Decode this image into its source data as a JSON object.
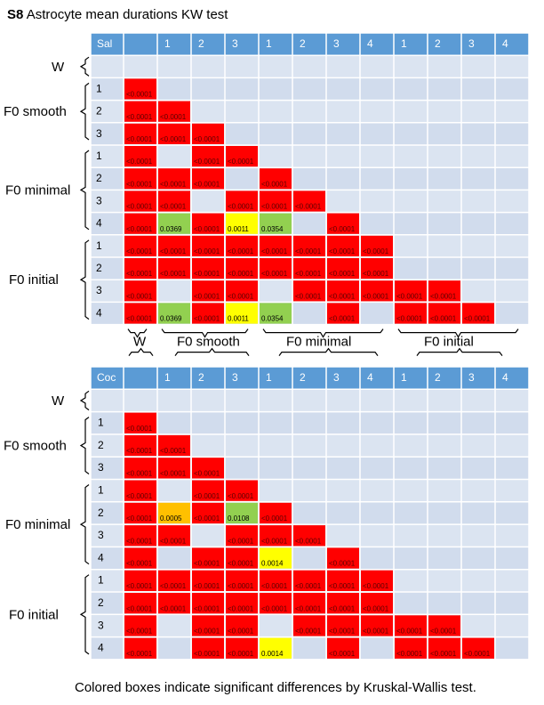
{
  "title_prefix": "S8",
  "title_rest": "Astrocyte mean durations KW test",
  "footnote": "Colored boxes indicate significant differences by Kruskal-Wallis test.",
  "colors": {
    "header": "#5b9bd5",
    "row_band_light": "#dbe4f1",
    "row_band_dark": "#d1dced",
    "sig_red": "#ff0000",
    "sig_green": "#92d050",
    "sig_yellow": "#ffff00",
    "sig_orange": "#ffc000",
    "grid_line": "#ffffff"
  },
  "chart_data": [
    {
      "type": "table",
      "corner_label": "Sal",
      "column_labels": [
        "1",
        "2",
        "3",
        "1",
        "2",
        "3",
        "4",
        "1",
        "2",
        "3",
        "4"
      ],
      "row_labels": [
        "",
        "1",
        "2",
        "3",
        "1",
        "2",
        "3",
        "4",
        "1",
        "2",
        "3",
        "4"
      ],
      "row_groups": [
        {
          "name": "W",
          "rows": [
            0
          ]
        },
        {
          "name": "F0 smooth",
          "rows": [
            1,
            2,
            3
          ]
        },
        {
          "name": "F0 minimal",
          "rows": [
            4,
            5,
            6,
            7
          ]
        },
        {
          "name": "F0 initial",
          "rows": [
            8,
            9,
            10,
            11
          ]
        }
      ],
      "bottom_group_labels": [
        "W",
        "F0 smooth",
        "F0 minimal",
        "F0 initial"
      ],
      "cells": [
        {
          "r": 1,
          "c": 0,
          "text": "<0.0001",
          "color": "red"
        },
        {
          "r": 2,
          "c": 0,
          "text": "<0.0001",
          "color": "red"
        },
        {
          "r": 2,
          "c": 1,
          "text": "<0.0001",
          "color": "red"
        },
        {
          "r": 3,
          "c": 0,
          "text": "<0.0001",
          "color": "red"
        },
        {
          "r": 3,
          "c": 1,
          "text": "<0.0001",
          "color": "red"
        },
        {
          "r": 3,
          "c": 2,
          "text": "<0.0001",
          "color": "red"
        },
        {
          "r": 4,
          "c": 0,
          "text": "<0.0001",
          "color": "red"
        },
        {
          "r": 4,
          "c": 2,
          "text": "<0.0001",
          "color": "red"
        },
        {
          "r": 4,
          "c": 3,
          "text": "<0.0001",
          "color": "red"
        },
        {
          "r": 5,
          "c": 0,
          "text": "<0.0001",
          "color": "red"
        },
        {
          "r": 5,
          "c": 1,
          "text": "<0.0001",
          "color": "red"
        },
        {
          "r": 5,
          "c": 2,
          "text": "<0.0001",
          "color": "red"
        },
        {
          "r": 5,
          "c": 4,
          "text": "<0.0001",
          "color": "red"
        },
        {
          "r": 6,
          "c": 0,
          "text": "<0.0001",
          "color": "red"
        },
        {
          "r": 6,
          "c": 1,
          "text": "<0.0001",
          "color": "red"
        },
        {
          "r": 6,
          "c": 3,
          "text": "<0.0001",
          "color": "red"
        },
        {
          "r": 6,
          "c": 4,
          "text": "<0.0001",
          "color": "red"
        },
        {
          "r": 6,
          "c": 5,
          "text": "<0.0001",
          "color": "red"
        },
        {
          "r": 7,
          "c": 0,
          "text": "<0.0001",
          "color": "red"
        },
        {
          "r": 7,
          "c": 1,
          "text": "0.0369",
          "color": "green"
        },
        {
          "r": 7,
          "c": 2,
          "text": "<0.0001",
          "color": "red"
        },
        {
          "r": 7,
          "c": 3,
          "text": "0.0011",
          "color": "yellow"
        },
        {
          "r": 7,
          "c": 4,
          "text": "0.0354",
          "color": "green"
        },
        {
          "r": 7,
          "c": 6,
          "text": "<0.0001",
          "color": "red"
        },
        {
          "r": 8,
          "c": 0,
          "text": "<0.0001",
          "color": "red"
        },
        {
          "r": 8,
          "c": 1,
          "text": "<0.0001",
          "color": "red"
        },
        {
          "r": 8,
          "c": 2,
          "text": "<0.0001",
          "color": "red"
        },
        {
          "r": 8,
          "c": 3,
          "text": "<0.0001",
          "color": "red"
        },
        {
          "r": 8,
          "c": 4,
          "text": "<0.0001",
          "color": "red"
        },
        {
          "r": 8,
          "c": 5,
          "text": "<0.0001",
          "color": "red"
        },
        {
          "r": 8,
          "c": 6,
          "text": "<0.0001",
          "color": "red"
        },
        {
          "r": 8,
          "c": 7,
          "text": "<0.0001",
          "color": "red"
        },
        {
          "r": 9,
          "c": 0,
          "text": "<0.0001",
          "color": "red"
        },
        {
          "r": 9,
          "c": 1,
          "text": "<0.0001",
          "color": "red"
        },
        {
          "r": 9,
          "c": 2,
          "text": "<0.0001",
          "color": "red"
        },
        {
          "r": 9,
          "c": 3,
          "text": "<0.0001",
          "color": "red"
        },
        {
          "r": 9,
          "c": 4,
          "text": "<0.0001",
          "color": "red"
        },
        {
          "r": 9,
          "c": 5,
          "text": "<0.0001",
          "color": "red"
        },
        {
          "r": 9,
          "c": 6,
          "text": "<0.0001",
          "color": "red"
        },
        {
          "r": 9,
          "c": 7,
          "text": "<0.0001",
          "color": "red"
        },
        {
          "r": 10,
          "c": 0,
          "text": "<0.0001",
          "color": "red"
        },
        {
          "r": 10,
          "c": 2,
          "text": "<0.0001",
          "color": "red"
        },
        {
          "r": 10,
          "c": 3,
          "text": "<0.0001",
          "color": "red"
        },
        {
          "r": 10,
          "c": 5,
          "text": "<0.0001",
          "color": "red"
        },
        {
          "r": 10,
          "c": 6,
          "text": "<0.0001",
          "color": "red"
        },
        {
          "r": 10,
          "c": 7,
          "text": "<0.0001",
          "color": "red"
        },
        {
          "r": 10,
          "c": 8,
          "text": "<0.0001",
          "color": "red"
        },
        {
          "r": 10,
          "c": 9,
          "text": "<0.0001",
          "color": "red"
        },
        {
          "r": 11,
          "c": 0,
          "text": "<0.0001",
          "color": "red"
        },
        {
          "r": 11,
          "c": 1,
          "text": "0.0369",
          "color": "green"
        },
        {
          "r": 11,
          "c": 2,
          "text": "<0.0001",
          "color": "red"
        },
        {
          "r": 11,
          "c": 3,
          "text": "0.0011",
          "color": "yellow"
        },
        {
          "r": 11,
          "c": 4,
          "text": "0.0354",
          "color": "green"
        },
        {
          "r": 11,
          "c": 6,
          "text": "<0.0001",
          "color": "red"
        },
        {
          "r": 11,
          "c": 8,
          "text": "<0.0001",
          "color": "red"
        },
        {
          "r": 11,
          "c": 9,
          "text": "<0.0001",
          "color": "red"
        },
        {
          "r": 11,
          "c": 10,
          "text": "<0.0001",
          "color": "red"
        }
      ]
    },
    {
      "type": "table",
      "corner_label": "Coc",
      "column_labels": [
        "1",
        "2",
        "3",
        "1",
        "2",
        "3",
        "4",
        "1",
        "2",
        "3",
        "4"
      ],
      "row_labels": [
        "",
        "1",
        "2",
        "3",
        "1",
        "2",
        "3",
        "4",
        "1",
        "2",
        "3",
        "4"
      ],
      "row_groups": [
        {
          "name": "W",
          "rows": [
            0
          ]
        },
        {
          "name": "F0 smooth",
          "rows": [
            1,
            2,
            3
          ]
        },
        {
          "name": "F0 minimal",
          "rows": [
            4,
            5,
            6,
            7
          ]
        },
        {
          "name": "F0 initial",
          "rows": [
            8,
            9,
            10,
            11
          ]
        }
      ],
      "cells": [
        {
          "r": 1,
          "c": 0,
          "text": "<0.0001",
          "color": "red"
        },
        {
          "r": 2,
          "c": 0,
          "text": "<0.0001",
          "color": "red"
        },
        {
          "r": 2,
          "c": 1,
          "text": "<0.0001",
          "color": "red"
        },
        {
          "r": 3,
          "c": 0,
          "text": "<0.0001",
          "color": "red"
        },
        {
          "r": 3,
          "c": 1,
          "text": "<0.0001",
          "color": "red"
        },
        {
          "r": 3,
          "c": 2,
          "text": "<0.0001",
          "color": "red"
        },
        {
          "r": 4,
          "c": 0,
          "text": "<0.0001",
          "color": "red"
        },
        {
          "r": 4,
          "c": 2,
          "text": "<0.0001",
          "color": "red"
        },
        {
          "r": 4,
          "c": 3,
          "text": "<0.0001",
          "color": "red"
        },
        {
          "r": 5,
          "c": 0,
          "text": "<0.0001",
          "color": "red"
        },
        {
          "r": 5,
          "c": 1,
          "text": "0.0005",
          "color": "orange"
        },
        {
          "r": 5,
          "c": 2,
          "text": "<0.0001",
          "color": "red"
        },
        {
          "r": 5,
          "c": 3,
          "text": "0.0108",
          "color": "green"
        },
        {
          "r": 5,
          "c": 4,
          "text": "<0.0001",
          "color": "red"
        },
        {
          "r": 6,
          "c": 0,
          "text": "<0.0001",
          "color": "red"
        },
        {
          "r": 6,
          "c": 1,
          "text": "<0.0001",
          "color": "red"
        },
        {
          "r": 6,
          "c": 3,
          "text": "<0.0001",
          "color": "red"
        },
        {
          "r": 6,
          "c": 4,
          "text": "<0.0001",
          "color": "red"
        },
        {
          "r": 6,
          "c": 5,
          "text": "<0.0001",
          "color": "red"
        },
        {
          "r": 7,
          "c": 0,
          "text": "<0.0001",
          "color": "red"
        },
        {
          "r": 7,
          "c": 2,
          "text": "<0.0001",
          "color": "red"
        },
        {
          "r": 7,
          "c": 3,
          "text": "<0.0001",
          "color": "red"
        },
        {
          "r": 7,
          "c": 4,
          "text": "0.0014",
          "color": "yellow"
        },
        {
          "r": 7,
          "c": 6,
          "text": "<0.0001",
          "color": "red"
        },
        {
          "r": 8,
          "c": 0,
          "text": "<0.0001",
          "color": "red"
        },
        {
          "r": 8,
          "c": 1,
          "text": "<0.0001",
          "color": "red"
        },
        {
          "r": 8,
          "c": 2,
          "text": "<0.0001",
          "color": "red"
        },
        {
          "r": 8,
          "c": 3,
          "text": "<0.0001",
          "color": "red"
        },
        {
          "r": 8,
          "c": 4,
          "text": "<0.0001",
          "color": "red"
        },
        {
          "r": 8,
          "c": 5,
          "text": "<0.0001",
          "color": "red"
        },
        {
          "r": 8,
          "c": 6,
          "text": "<0.0001",
          "color": "red"
        },
        {
          "r": 8,
          "c": 7,
          "text": "<0.0001",
          "color": "red"
        },
        {
          "r": 9,
          "c": 0,
          "text": "<0.0001",
          "color": "red"
        },
        {
          "r": 9,
          "c": 1,
          "text": "<0.0001",
          "color": "red"
        },
        {
          "r": 9,
          "c": 2,
          "text": "<0.0001",
          "color": "red"
        },
        {
          "r": 9,
          "c": 3,
          "text": "<0.0001",
          "color": "red"
        },
        {
          "r": 9,
          "c": 4,
          "text": "<0.0001",
          "color": "red"
        },
        {
          "r": 9,
          "c": 5,
          "text": "<0.0001",
          "color": "red"
        },
        {
          "r": 9,
          "c": 6,
          "text": "<0.0001",
          "color": "red"
        },
        {
          "r": 9,
          "c": 7,
          "text": "<0.0001",
          "color": "red"
        },
        {
          "r": 10,
          "c": 0,
          "text": "<0.0001",
          "color": "red"
        },
        {
          "r": 10,
          "c": 2,
          "text": "<0.0001",
          "color": "red"
        },
        {
          "r": 10,
          "c": 3,
          "text": "<0.0001",
          "color": "red"
        },
        {
          "r": 10,
          "c": 5,
          "text": "<0.0001",
          "color": "red"
        },
        {
          "r": 10,
          "c": 6,
          "text": "<0.0001",
          "color": "red"
        },
        {
          "r": 10,
          "c": 7,
          "text": "<0.0001",
          "color": "red"
        },
        {
          "r": 10,
          "c": 8,
          "text": "<0.0001",
          "color": "red"
        },
        {
          "r": 10,
          "c": 9,
          "text": "<0.0001",
          "color": "red"
        },
        {
          "r": 11,
          "c": 0,
          "text": "<0.0001",
          "color": "red"
        },
        {
          "r": 11,
          "c": 2,
          "text": "<0.0001",
          "color": "red"
        },
        {
          "r": 11,
          "c": 3,
          "text": "<0.0001",
          "color": "red"
        },
        {
          "r": 11,
          "c": 4,
          "text": "0.0014",
          "color": "yellow"
        },
        {
          "r": 11,
          "c": 6,
          "text": "<0.0001",
          "color": "red"
        },
        {
          "r": 11,
          "c": 8,
          "text": "<0.0001",
          "color": "red"
        },
        {
          "r": 11,
          "c": 9,
          "text": "<0.0001",
          "color": "red"
        },
        {
          "r": 11,
          "c": 10,
          "text": "<0.0001",
          "color": "red"
        }
      ]
    }
  ]
}
